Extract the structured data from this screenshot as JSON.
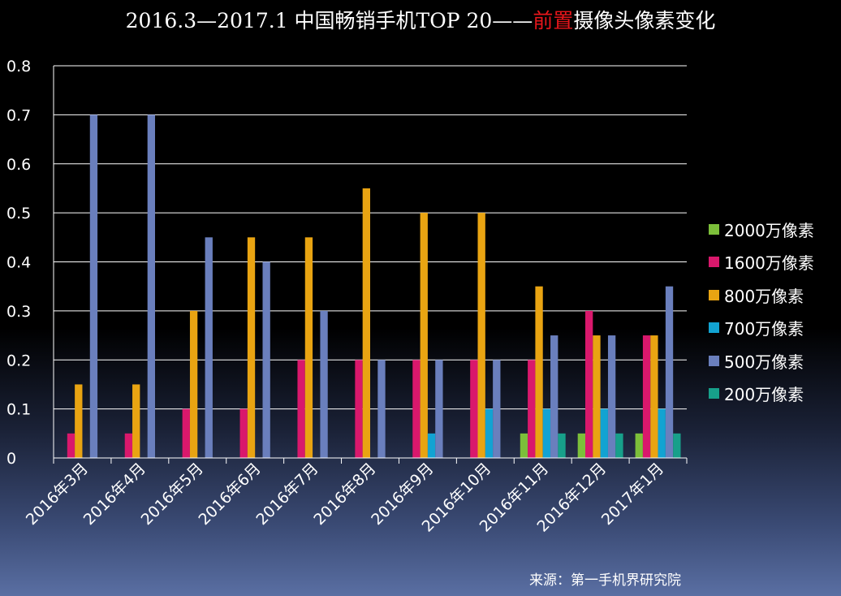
{
  "title": {
    "part1": "2016.3—2017.1 中国畅销手机TOP 20——",
    "highlight": "前置",
    "part2": "摄像头像素变化",
    "highlight_color": "#e8161b"
  },
  "source": "来源：第一手机界研究院",
  "chart_data": {
    "type": "bar",
    "title": "2016.3—2017.1 中国畅销手机TOP 20——前置摄像头像素变化",
    "xlabel": "",
    "ylabel": "",
    "ylim": [
      0,
      0.8
    ],
    "yticks": [
      "0",
      "0.1",
      "0.2",
      "0.3",
      "0.4",
      "0.5",
      "0.6",
      "0.7",
      "0.8"
    ],
    "grid": true,
    "legend_position": "right",
    "categories": [
      "2016年3月",
      "2016年4月",
      "2016年5月",
      "2016年6月",
      "2016年7月",
      "2016年8月",
      "2016年9月",
      "2016年10月",
      "2016年11月",
      "2016年12月",
      "2017年1月"
    ],
    "series": [
      {
        "name": "2000万像素",
        "color": "#7cbf3a",
        "values": [
          0,
          0,
          0,
          0,
          0,
          0,
          0,
          0,
          0.05,
          0.05,
          0.05
        ]
      },
      {
        "name": "1600万像素",
        "color": "#d9186c",
        "values": [
          0.05,
          0.05,
          0.1,
          0.1,
          0.2,
          0.2,
          0.2,
          0.2,
          0.2,
          0.3,
          0.25
        ]
      },
      {
        "name": "800万像素",
        "color": "#e9a412",
        "values": [
          0.15,
          0.15,
          0.3,
          0.45,
          0.45,
          0.55,
          0.5,
          0.5,
          0.35,
          0.25,
          0.25
        ]
      },
      {
        "name": "700万像素",
        "color": "#12a3d2",
        "values": [
          0,
          0,
          0,
          0,
          0,
          0,
          0.05,
          0.1,
          0.1,
          0.1,
          0.1
        ]
      },
      {
        "name": "500万像素",
        "color": "#6a7fbd",
        "values": [
          0.7,
          0.7,
          0.45,
          0.4,
          0.3,
          0.2,
          0.2,
          0.2,
          0.25,
          0.25,
          0.35
        ]
      },
      {
        "name": "200万像素",
        "color": "#17a08a",
        "values": [
          0,
          0,
          0,
          0,
          0,
          0,
          0,
          0,
          0.05,
          0.05,
          0.05
        ]
      }
    ]
  }
}
